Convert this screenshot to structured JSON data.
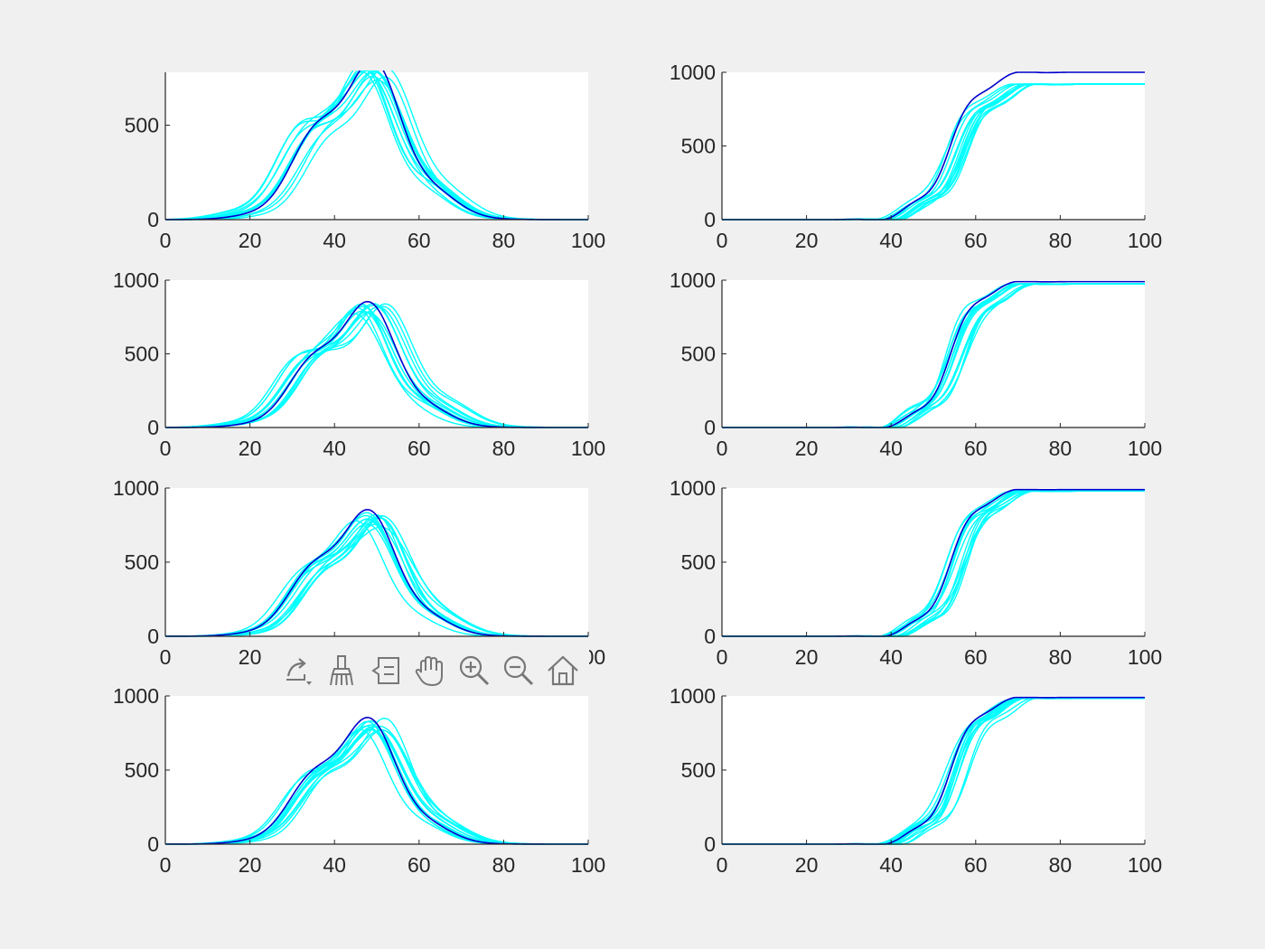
{
  "toolbar": {
    "buttons": [
      {
        "name": "export-button",
        "icon": "export-arrow-icon"
      },
      {
        "name": "brush-button",
        "icon": "brush-icon"
      },
      {
        "name": "datatip-button",
        "icon": "datatip-icon"
      },
      {
        "name": "pan-button",
        "icon": "hand-icon"
      },
      {
        "name": "zoom-in-button",
        "icon": "zoom-in-icon"
      },
      {
        "name": "zoom-out-button",
        "icon": "zoom-out-icon"
      },
      {
        "name": "restore-view-button",
        "icon": "home-icon"
      }
    ]
  },
  "colors": {
    "background": "#f0f0f0",
    "axes": "#ffffff",
    "main_series": "#0000cc",
    "other_series": "#00ffff"
  },
  "chart_data": [
    {
      "type": "line",
      "position": "row-1-left",
      "kind": "density",
      "xlim": [
        0,
        100
      ],
      "ylim": [
        0,
        780
      ],
      "yticks": [
        0,
        500
      ],
      "xticks": [
        0,
        20,
        40,
        60,
        80,
        100
      ],
      "peak": 790,
      "mu": 46,
      "sigma": 11.5,
      "series_count": 13
    },
    {
      "type": "line",
      "position": "row-1-right",
      "kind": "cumulative",
      "xlim": [
        0,
        100
      ],
      "ylim": [
        0,
        1000
      ],
      "yticks": [
        0,
        500,
        1000
      ],
      "xticks": [
        0,
        20,
        40,
        60,
        80,
        100
      ],
      "plateau": 1000,
      "other_plateau": 920,
      "mu": 55,
      "sigma": 7,
      "series_count": 13
    },
    {
      "type": "line",
      "position": "row-2-left",
      "kind": "density",
      "xlim": [
        0,
        100
      ],
      "ylim": [
        0,
        1000
      ],
      "yticks": [
        0,
        500,
        1000
      ],
      "xticks": [
        0,
        20,
        40,
        60,
        80,
        100
      ],
      "peak": 800,
      "mu": 45,
      "sigma": 11,
      "series_count": 13
    },
    {
      "type": "line",
      "position": "row-2-right",
      "kind": "cumulative",
      "xlim": [
        0,
        100
      ],
      "ylim": [
        0,
        1000
      ],
      "yticks": [
        0,
        500,
        1000
      ],
      "xticks": [
        0,
        20,
        40,
        60,
        80,
        100
      ],
      "plateau": 990,
      "other_plateau": 975,
      "mu": 55,
      "sigma": 6.5,
      "series_count": 13
    },
    {
      "type": "line",
      "position": "row-3-left",
      "kind": "density",
      "xlim": [
        0,
        100
      ],
      "ylim": [
        0,
        1000
      ],
      "yticks": [
        0,
        500,
        1000
      ],
      "xticks": [
        0,
        20,
        40,
        60,
        80,
        100
      ],
      "peak": 800,
      "mu": 45,
      "sigma": 11,
      "series_count": 13
    },
    {
      "type": "line",
      "position": "row-3-right",
      "kind": "cumulative",
      "xlim": [
        0,
        100
      ],
      "ylim": [
        0,
        1000
      ],
      "yticks": [
        0,
        500,
        1000
      ],
      "xticks": [
        0,
        20,
        40,
        60,
        80,
        100
      ],
      "plateau": 990,
      "other_plateau": 980,
      "mu": 55,
      "sigma": 6.5,
      "series_count": 13
    },
    {
      "type": "line",
      "position": "row-4-left",
      "kind": "density",
      "xlim": [
        0,
        100
      ],
      "ylim": [
        0,
        1000
      ],
      "yticks": [
        0,
        500,
        1000
      ],
      "xticks": [
        0,
        20,
        40,
        60,
        80,
        100
      ],
      "peak": 800,
      "mu": 45,
      "sigma": 11,
      "series_count": 13
    },
    {
      "type": "line",
      "position": "row-4-right",
      "kind": "cumulative",
      "xlim": [
        0,
        100
      ],
      "ylim": [
        0,
        1000
      ],
      "yticks": [
        0,
        500,
        1000
      ],
      "xticks": [
        0,
        20,
        40,
        60,
        80,
        100
      ],
      "plateau": 990,
      "other_plateau": 985,
      "mu": 55,
      "sigma": 6.5,
      "series_count": 13
    }
  ]
}
